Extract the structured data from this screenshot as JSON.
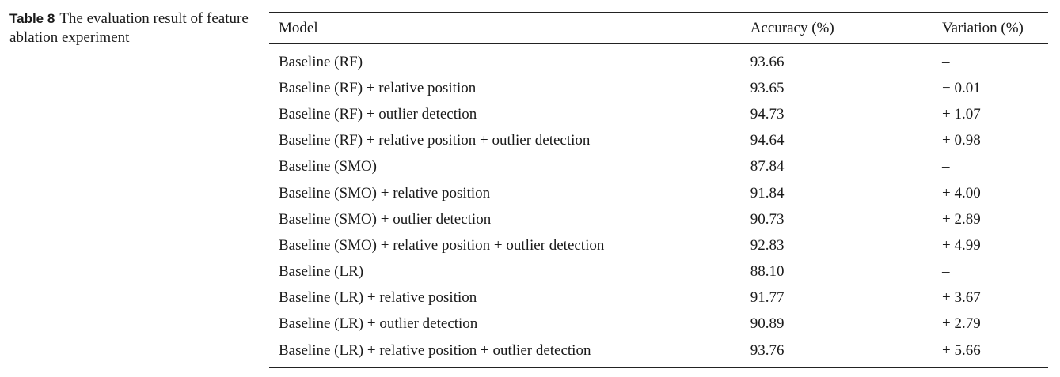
{
  "caption": {
    "label": "Table 8",
    "text": "The evaluation result of feature ablation experiment"
  },
  "table": {
    "headers": [
      "Model",
      "Accuracy (%)",
      "Variation (%)"
    ],
    "rows": [
      {
        "model": "Baseline (RF)",
        "accuracy": "93.66",
        "variation": "–"
      },
      {
        "model": "Baseline (RF) + relative position",
        "accuracy": "93.65",
        "variation": "− 0.01"
      },
      {
        "model": "Baseline (RF) + outlier detection",
        "accuracy": "94.73",
        "variation": "+ 1.07"
      },
      {
        "model": "Baseline (RF) + relative position + outlier detection",
        "accuracy": "94.64",
        "variation": "+ 0.98"
      },
      {
        "model": "Baseline (SMO)",
        "accuracy": "87.84",
        "variation": "–"
      },
      {
        "model": "Baseline (SMO) + relative position",
        "accuracy": "91.84",
        "variation": "+ 4.00"
      },
      {
        "model": "Baseline (SMO) + outlier detection",
        "accuracy": "90.73",
        "variation": "+ 2.89"
      },
      {
        "model": "Baseline (SMO) + relative position + outlier detection",
        "accuracy": "92.83",
        "variation": "+ 4.99"
      },
      {
        "model": "Baseline (LR)",
        "accuracy": "88.10",
        "variation": "–"
      },
      {
        "model": "Baseline (LR) + relative position",
        "accuracy": "91.77",
        "variation": "+ 3.67"
      },
      {
        "model": "Baseline (LR) + outlier detection",
        "accuracy": "90.89",
        "variation": "+ 2.79"
      },
      {
        "model": "Baseline (LR) + relative position + outlier detection",
        "accuracy": "93.76",
        "variation": "+ 5.66"
      }
    ]
  }
}
